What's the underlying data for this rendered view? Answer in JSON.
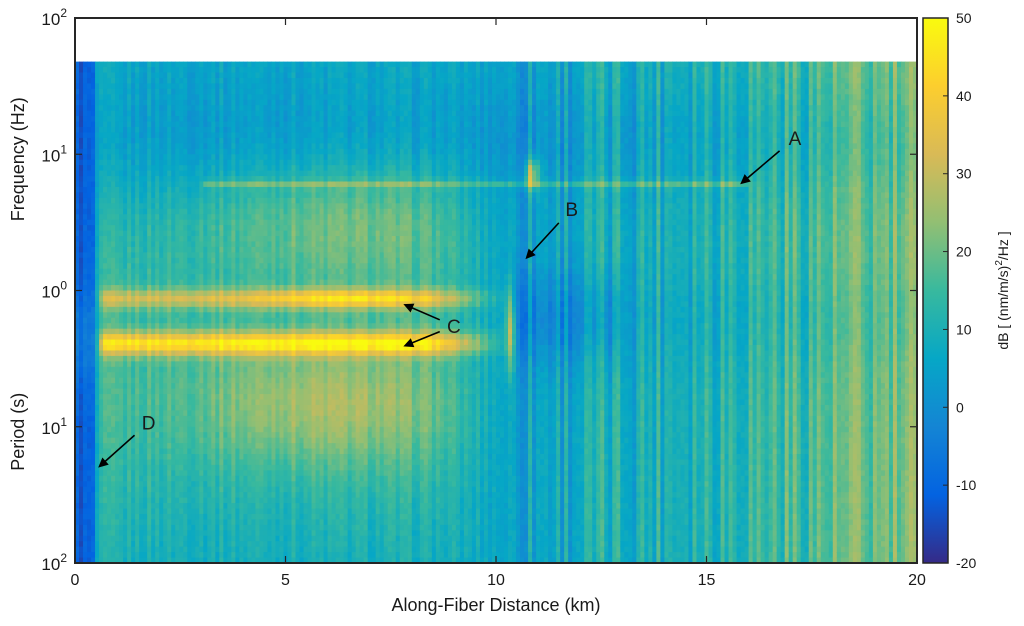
{
  "chart_data": {
    "type": "heatmap",
    "title": "",
    "xlabel": "Along-Fiber Distance (km)",
    "ylabel_top": "Frequency (Hz)",
    "ylabel_bottom": "Period (s)",
    "xlim": [
      0,
      20
    ],
    "ylim_log10": [
      -2,
      2
    ],
    "yscale": "log",
    "x_ticks": [
      0,
      5,
      10,
      15,
      20
    ],
    "x_tick_labels": [
      "0",
      "5",
      "10",
      "15",
      "20"
    ],
    "y_ticks": [
      {
        "log10": 2,
        "base": "10",
        "exp": "2"
      },
      {
        "log10": 1,
        "base": "10",
        "exp": "1"
      },
      {
        "log10": 0,
        "base": "10",
        "exp": "0"
      },
      {
        "log10": -1,
        "base": "10",
        "exp": "1"
      },
      {
        "log10": -2,
        "base": "10",
        "exp": "2"
      }
    ],
    "data_max_frequency_hz": 50,
    "colorbar": {
      "label_prefix": "dB [ (nm/m/s)",
      "label_sup": "2",
      "label_suffix": "/Hz ]",
      "range": [
        -20,
        50
      ],
      "ticks": [
        50,
        40,
        30,
        20,
        10,
        0,
        -10,
        -20
      ],
      "tick_labels": [
        "50",
        "40",
        "30",
        "20",
        "10",
        "0",
        "-10",
        "-20"
      ],
      "colormap": "parula",
      "colors": [
        "#352a87",
        "#0363e1",
        "#1485d4",
        "#06a7c6",
        "#38b99e",
        "#92bf73",
        "#d9ba56",
        "#fcce2e",
        "#f9fb0e"
      ]
    },
    "annotations": [
      {
        "label": "A",
        "text_x_km": 17.1,
        "text_log10f": 1.12,
        "arrow_x_km": 15.8,
        "arrow_log10f": 0.78
      },
      {
        "label": "B",
        "text_x_km": 11.8,
        "text_log10f": 0.6,
        "arrow_x_km": 10.7,
        "arrow_log10f": 0.23
      },
      {
        "label": "C",
        "text_x_km": 9.0,
        "text_log10f": -0.26,
        "arrow_x_km": 7.8,
        "arrow_log10f": -0.1
      },
      {
        "label": "C",
        "text_x_km": 9.0,
        "text_log10f": -0.26,
        "arrow_x_km": 7.8,
        "arrow_log10f": -0.41
      },
      {
        "label": "D",
        "text_x_km": 1.75,
        "text_log10f": -0.97,
        "arrow_x_km": 0.55,
        "arrow_log10f": -1.3
      }
    ],
    "features": [
      {
        "name": "microseism band (~0.4 Hz / 2.5 s)",
        "log10f": -0.39,
        "x_range_km": [
          0.5,
          10.4
        ],
        "peak_db": 45
      },
      {
        "name": "secondary band (~0.8 Hz)",
        "log10f": -0.06,
        "x_range_km": [
          0.5,
          10.4
        ],
        "peak_db": 42
      },
      {
        "name": "spectral line (~6 Hz)",
        "log10f": 0.78,
        "x_range_km": [
          3,
          16
        ],
        "peak_db": 18
      },
      {
        "name": "low-energy segment",
        "x_range_km": [
          0,
          0.55
        ],
        "level_db": -10
      },
      {
        "name": "far-field elevated noise",
        "x_range_km": [
          13,
          20
        ],
        "level_db": 15
      }
    ]
  }
}
